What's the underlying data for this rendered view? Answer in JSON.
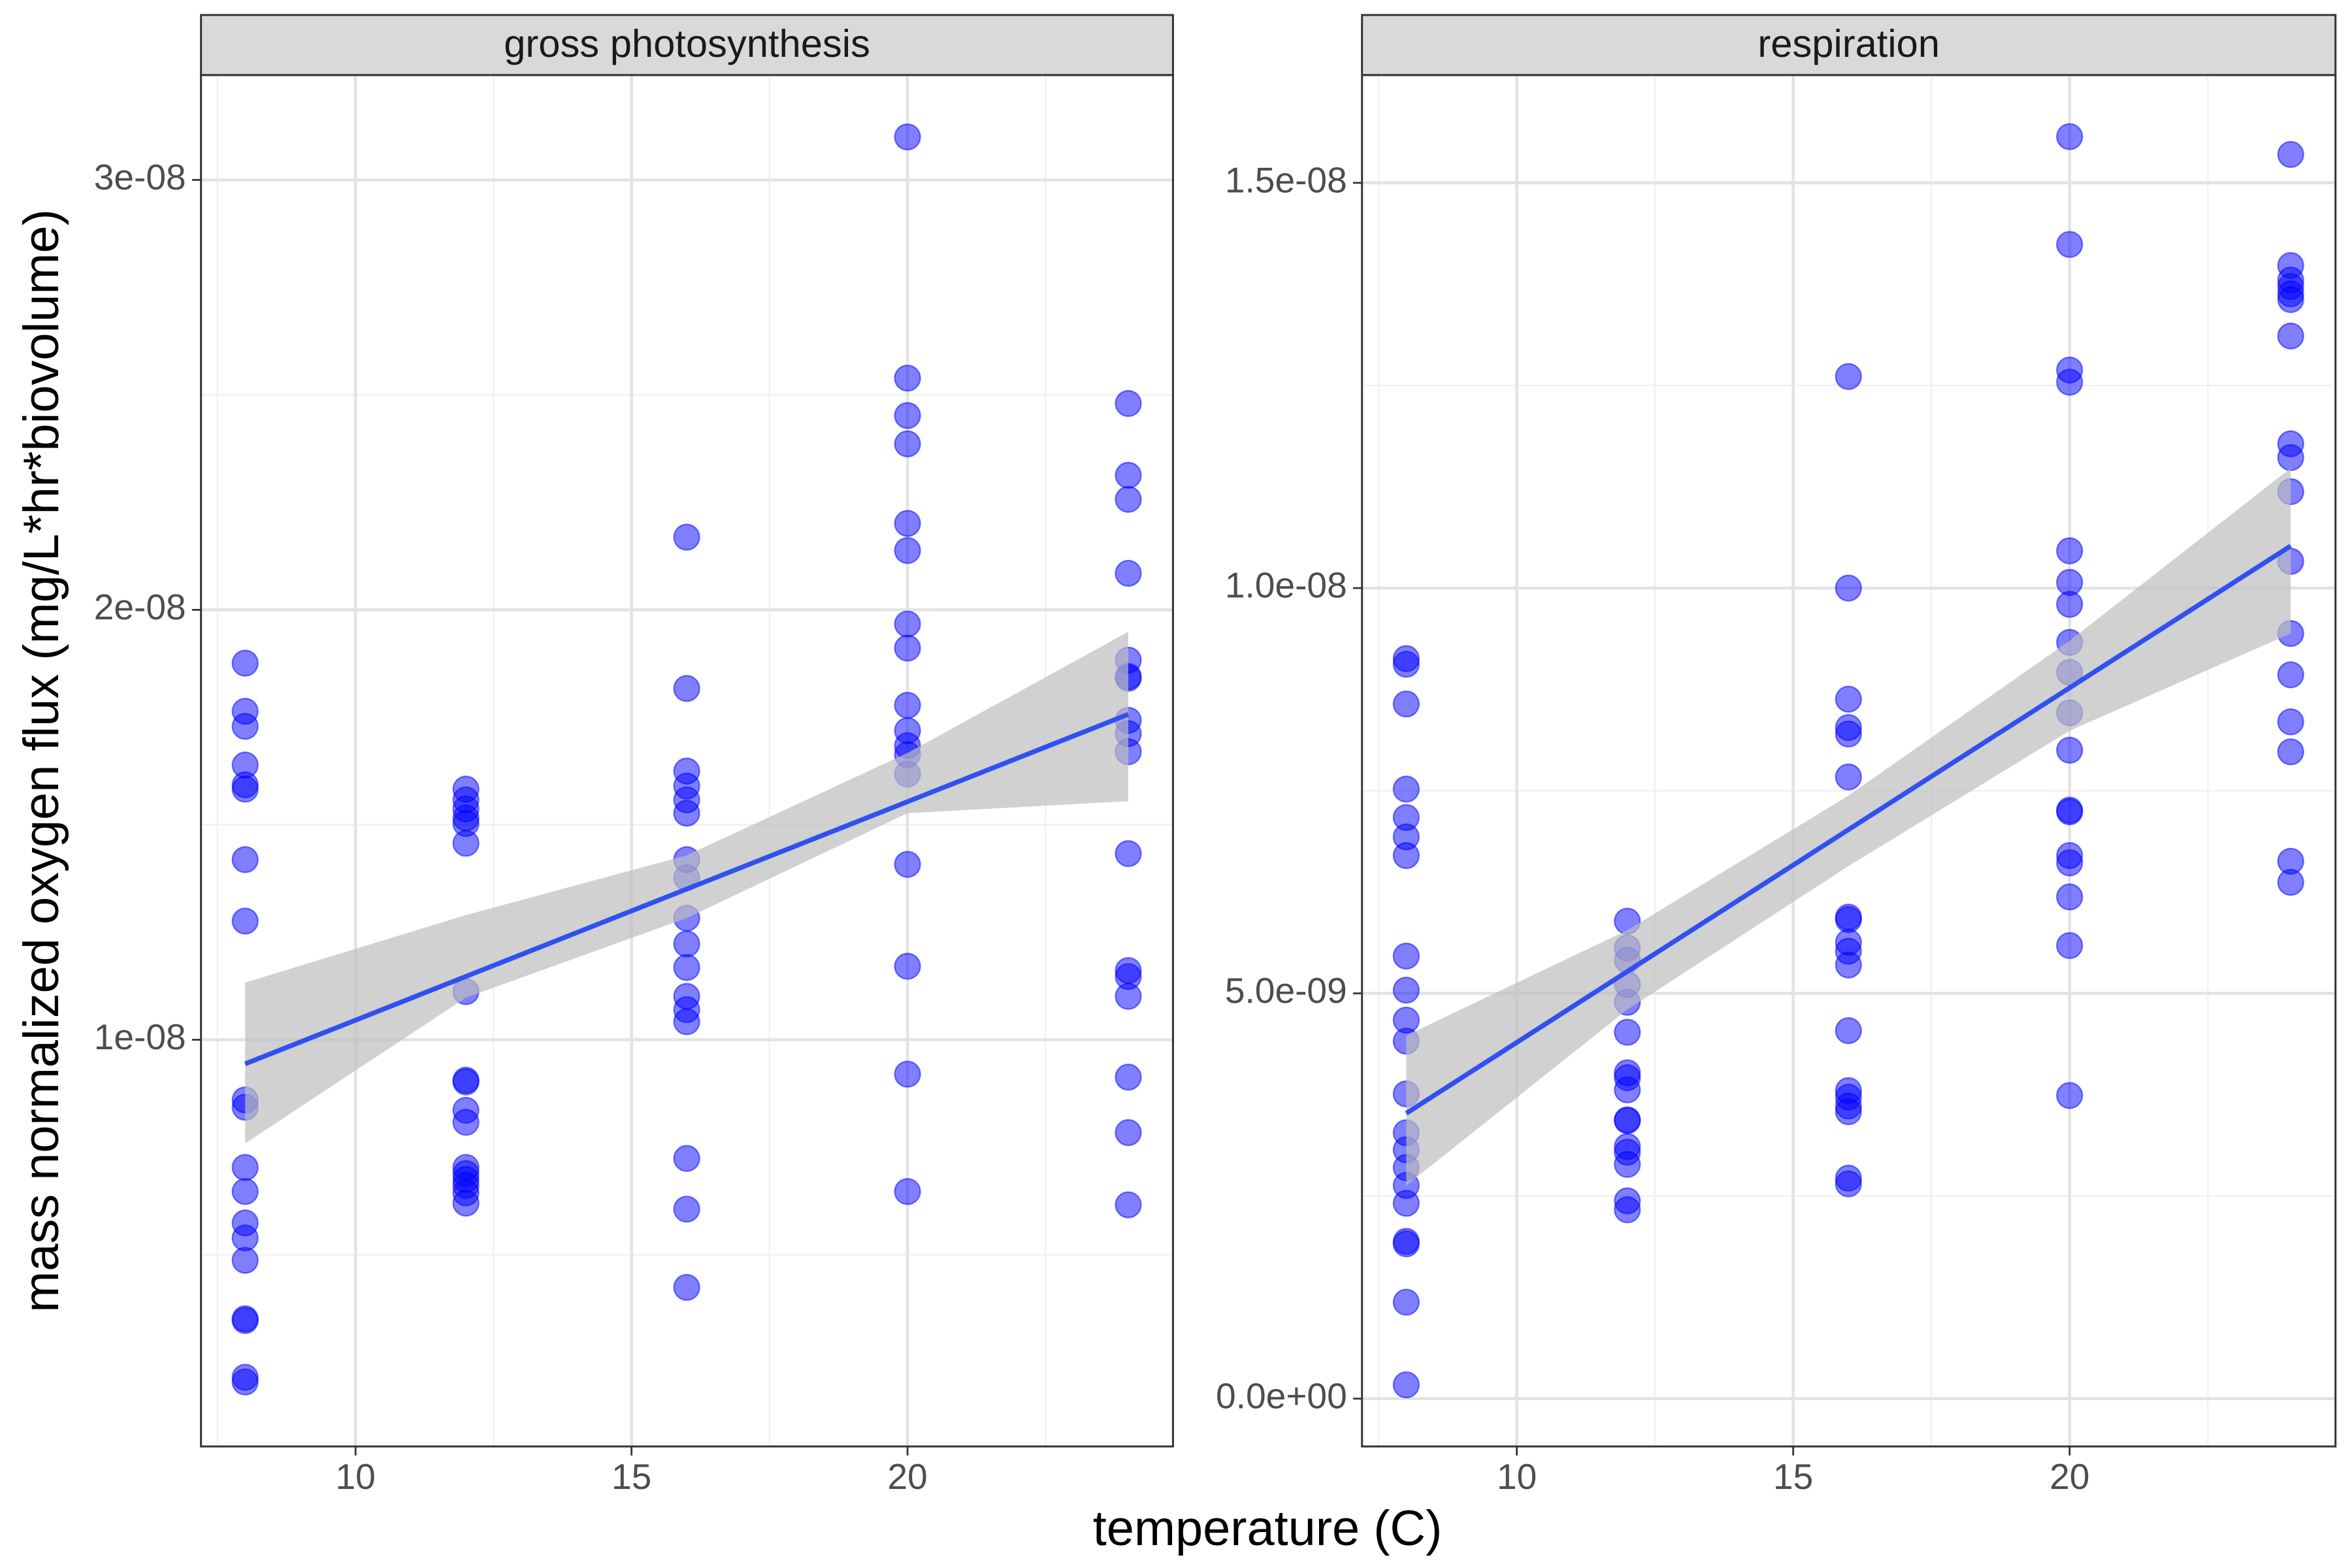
{
  "xlabel": "temperature (C)",
  "ylabel": "mass normalized oxygen flux (mg/L*hr*biovolume)",
  "chart_data": [
    {
      "type": "scatter",
      "title": "gross photosynthesis",
      "color": "#0000ff",
      "opacity": 0.5,
      "grid": true,
      "xlim": [
        7.2,
        24.81
      ],
      "xticks": [
        10,
        15,
        20
      ],
      "xminor": [
        7.5,
        12.5,
        17.5,
        22.5
      ],
      "ylim": [
        5.4e-10,
        3.244e-08
      ],
      "yticks": [
        {
          "value": 1e-08,
          "label": "1e-08"
        },
        {
          "value": 2e-08,
          "label": "2e-08"
        },
        {
          "value": 3e-08,
          "label": "3e-08"
        }
      ],
      "yminor": [
        5e-09,
        1.5e-08,
        2.5e-08
      ],
      "x": [
        8,
        8,
        8,
        8,
        8,
        8,
        8,
        8,
        8,
        8,
        8,
        8,
        8,
        8,
        8,
        8,
        8,
        8,
        8,
        12,
        12,
        12,
        12,
        12,
        12,
        12,
        12,
        12,
        12,
        12,
        12,
        12,
        12,
        12,
        12,
        12,
        16,
        16,
        16,
        16,
        16,
        16,
        16,
        16,
        16,
        16,
        16,
        16,
        16,
        16,
        16,
        16,
        16,
        20,
        20,
        20,
        20,
        20,
        20,
        20,
        20,
        20,
        20,
        20,
        20,
        20,
        20,
        20,
        20,
        20,
        24,
        24,
        24,
        24,
        24,
        24,
        24,
        24,
        24,
        24,
        24,
        24,
        24,
        24,
        24,
        24,
        24
      ],
      "values": [
        1.876e-08,
        1.764e-08,
        1.729e-08,
        1.639e-08,
        1.593e-08,
        1.583e-08,
        1.419e-08,
        1.276e-08,
        8.6e-09,
        8.43e-09,
        7.03e-09,
        6.47e-09,
        5.74e-09,
        5.39e-09,
        4.87e-09,
        3.51e-09,
        3.47e-09,
        2.15e-09,
        2.04e-09,
        1.583e-08,
        1.558e-08,
        1.537e-08,
        1.516e-08,
        1.503e-08,
        1.457e-08,
        1.112e-08,
        9.06e-09,
        9.02e-09,
        8.36e-09,
        8.08e-09,
        7.03e-09,
        6.89e-09,
        6.75e-09,
        6.61e-09,
        6.44e-09,
        6.2e-09,
        2.169e-08,
        1.817e-08,
        1.625e-08,
        1.59e-08,
        1.558e-08,
        1.527e-08,
        1.419e-08,
        1.377e-08,
        1.283e-08,
        1.223e-08,
        1.168e-08,
        1.101e-08,
        1.07e-08,
        1.042e-08,
        7.24e-09,
        6.06e-09,
        4.24e-09,
        3.1e-08,
        2.539e-08,
        2.452e-08,
        2.386e-08,
        2.201e-08,
        2.138e-08,
        1.967e-08,
        1.911e-08,
        1.778e-08,
        1.719e-08,
        1.684e-08,
        1.663e-08,
        1.618e-08,
        1.408e-08,
        1.171e-08,
        9.2e-09,
        6.47e-09,
        2.48e-08,
        2.313e-08,
        2.257e-08,
        2.085e-08,
        1.883e-08,
        1.845e-08,
        1.841e-08,
        1.743e-08,
        1.712e-08,
        1.67e-08,
        1.433e-08,
        1.161e-08,
        1.147e-08,
        1.101e-08,
        9.13e-09,
        7.84e-09,
        6.16e-09
      ],
      "fit": {
        "x": [
          8,
          24
        ],
        "values": [
          9.44e-09,
          1.757e-08
        ],
        "color": "#3050f0"
      },
      "band": {
        "x": [
          8,
          12,
          16,
          20,
          24
        ],
        "upper": [
          1.133e-08,
          1.29e-08,
          1.429e-08,
          1.667e-08,
          1.949e-08
        ],
        "lower": [
          7.59e-09,
          1.098e-08,
          1.283e-08,
          1.527e-08,
          1.555e-08
        ],
        "color": "#bebebe"
      }
    },
    {
      "type": "scatter",
      "title": "respiration",
      "color": "#0000ff",
      "opacity": 0.5,
      "grid": true,
      "xlim": [
        7.2,
        24.81
      ],
      "xticks": [
        10,
        15,
        20
      ],
      "xminor": [
        7.5,
        12.5,
        17.5,
        22.5
      ],
      "ylim": [
        -5.9e-10,
        1.633e-08
      ],
      "yticks": [
        {
          "value": 0,
          "label": "0.0e+00"
        },
        {
          "value": 5e-09,
          "label": "5.0e-09"
        },
        {
          "value": 1e-08,
          "label": "1.0e-08"
        },
        {
          "value": 1.5e-08,
          "label": "1.5e-08"
        }
      ],
      "yminor": [
        2.5e-09,
        7.5e-09,
        1.25e-08
      ],
      "x": [
        8,
        8,
        8,
        8,
        8,
        8,
        8,
        8,
        8,
        8,
        8,
        8,
        8,
        8,
        8,
        8,
        8,
        8,
        8,
        8,
        8,
        12,
        12,
        12,
        12,
        12,
        12,
        12,
        12,
        12,
        12,
        12,
        12,
        12,
        12,
        12,
        12,
        16,
        16,
        16,
        16,
        16,
        16,
        16,
        16,
        16,
        16,
        16,
        16,
        16,
        16,
        16,
        16,
        16,
        16,
        20,
        20,
        20,
        20,
        20,
        20,
        20,
        20,
        20,
        20,
        20,
        20,
        20,
        20,
        20,
        20,
        20,
        20,
        24,
        24,
        24,
        24,
        24,
        24,
        24,
        24,
        24,
        24,
        24,
        24,
        24,
        24,
        24,
        24,
        24
      ],
      "values": [
        9.13e-09,
        9.06e-09,
        8.57e-09,
        7.52e-09,
        7.17e-09,
        6.93e-09,
        6.7e-09,
        5.46e-09,
        5.04e-09,
        4.67e-09,
        4.41e-09,
        3.76e-09,
        3.28e-09,
        3.07e-09,
        2.85e-09,
        2.63e-09,
        2.41e-09,
        1.94e-09,
        1.91e-09,
        1.19e-09,
        1.7e-10,
        5.89e-09,
        5.56e-09,
        5.41e-09,
        5.11e-09,
        4.89e-09,
        4.52e-09,
        4.02e-09,
        3.96e-09,
        3.81e-09,
        3.44e-09,
        3.43e-09,
        3.11e-09,
        3.04e-09,
        2.89e-09,
        2.44e-09,
        2.33e-09,
        1.261e-08,
        1e-08,
        8.63e-09,
        8.28e-09,
        8.2e-09,
        7.67e-09,
        5.94e-09,
        5.91e-09,
        5.63e-09,
        5.52e-09,
        5.35e-09,
        4.54e-09,
        3.8e-09,
        3.72e-09,
        3.61e-09,
        3.54e-09,
        2.72e-09,
        2.65e-09,
        1.557e-08,
        1.424e-08,
        1.269e-08,
        1.254e-08,
        1.046e-08,
        1.007e-08,
        9.8e-09,
        9.33e-09,
        8.96e-09,
        8.46e-09,
        8e-09,
        7.26e-09,
        7.24e-09,
        6.7e-09,
        6.61e-09,
        6.19e-09,
        5.59e-09,
        3.74e-09,
        1.535e-08,
        1.398e-08,
        1.38e-08,
        1.372e-08,
        1.363e-08,
        1.356e-08,
        1.311e-08,
        1.178e-08,
        1.161e-08,
        1.119e-08,
        1.033e-08,
        9.44e-09,
        8.93e-09,
        8.35e-09,
        7.98e-09,
        6.63e-09,
        6.37e-09
      ],
      "fit": {
        "x": [
          8,
          24
        ],
        "values": [
          3.52e-09,
          1.052e-08
        ],
        "color": "#3050f0"
      },
      "band": {
        "x": [
          8,
          12,
          16,
          20,
          24
        ],
        "upper": [
          4.48e-09,
          5.78e-09,
          7.44e-09,
          9.35e-09,
          1.148e-08
        ],
        "lower": [
          2.63e-09,
          4.8e-09,
          6.57e-09,
          8.24e-09,
          9.44e-09
        ],
        "color": "#bebebe"
      }
    }
  ]
}
